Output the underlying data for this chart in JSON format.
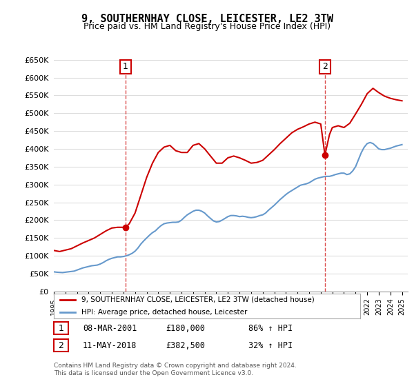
{
  "title": "9, SOUTHERNHAY CLOSE, LEICESTER, LE2 3TW",
  "subtitle": "Price paid vs. HM Land Registry's House Price Index (HPI)",
  "title_fontsize": 11,
  "subtitle_fontsize": 9,
  "ylim": [
    0,
    650000
  ],
  "yticks": [
    0,
    50000,
    100000,
    150000,
    200000,
    250000,
    300000,
    350000,
    400000,
    450000,
    500000,
    550000,
    600000,
    650000
  ],
  "xlim_start": 1995.0,
  "xlim_end": 2025.5,
  "background_color": "#ffffff",
  "grid_color": "#dddddd",
  "sale1_year": 2001.18,
  "sale1_price": 180000,
  "sale2_year": 2018.36,
  "sale2_price": 382500,
  "legend_label1": "9, SOUTHERNHAY CLOSE, LEICESTER, LE2 3TW (detached house)",
  "legend_label2": "HPI: Average price, detached house, Leicester",
  "annotation1_date": "08-MAR-2001",
  "annotation1_price": "£180,000",
  "annotation1_pct": "86% ↑ HPI",
  "annotation2_date": "11-MAY-2018",
  "annotation2_price": "£382,500",
  "annotation2_pct": "32% ↑ HPI",
  "red_line_color": "#cc0000",
  "blue_line_color": "#6699cc",
  "copyright_text": "Contains HM Land Registry data © Crown copyright and database right 2024.\nThis data is licensed under the Open Government Licence v3.0.",
  "hpi_data": {
    "years": [
      1995.0,
      1995.25,
      1995.5,
      1995.75,
      1996.0,
      1996.25,
      1996.5,
      1996.75,
      1997.0,
      1997.25,
      1997.5,
      1997.75,
      1998.0,
      1998.25,
      1998.5,
      1998.75,
      1999.0,
      1999.25,
      1999.5,
      1999.75,
      2000.0,
      2000.25,
      2000.5,
      2000.75,
      2001.0,
      2001.25,
      2001.5,
      2001.75,
      2002.0,
      2002.25,
      2002.5,
      2002.75,
      2003.0,
      2003.25,
      2003.5,
      2003.75,
      2004.0,
      2004.25,
      2004.5,
      2004.75,
      2005.0,
      2005.25,
      2005.5,
      2005.75,
      2006.0,
      2006.25,
      2006.5,
      2006.75,
      2007.0,
      2007.25,
      2007.5,
      2007.75,
      2008.0,
      2008.25,
      2008.5,
      2008.75,
      2009.0,
      2009.25,
      2009.5,
      2009.75,
      2010.0,
      2010.25,
      2010.5,
      2010.75,
      2011.0,
      2011.25,
      2011.5,
      2011.75,
      2012.0,
      2012.25,
      2012.5,
      2012.75,
      2013.0,
      2013.25,
      2013.5,
      2013.75,
      2014.0,
      2014.25,
      2014.5,
      2014.75,
      2015.0,
      2015.25,
      2015.5,
      2015.75,
      2016.0,
      2016.25,
      2016.5,
      2016.75,
      2017.0,
      2017.25,
      2017.5,
      2017.75,
      2018.0,
      2018.25,
      2018.5,
      2018.75,
      2019.0,
      2019.25,
      2019.5,
      2019.75,
      2020.0,
      2020.25,
      2020.5,
      2020.75,
      2021.0,
      2021.25,
      2021.5,
      2021.75,
      2022.0,
      2022.25,
      2022.5,
      2022.75,
      2023.0,
      2023.25,
      2023.5,
      2023.75,
      2024.0,
      2024.25,
      2024.5,
      2024.75,
      2025.0
    ],
    "values": [
      55000,
      54000,
      53500,
      53000,
      54000,
      55000,
      56000,
      57000,
      60000,
      63000,
      66000,
      68000,
      70000,
      72000,
      73000,
      74000,
      77000,
      81000,
      86000,
      90000,
      93000,
      95000,
      97000,
      97000,
      98000,
      100000,
      103000,
      107000,
      113000,
      122000,
      133000,
      142000,
      150000,
      158000,
      165000,
      170000,
      178000,
      185000,
      190000,
      192000,
      193000,
      194000,
      194000,
      195000,
      200000,
      208000,
      215000,
      220000,
      225000,
      228000,
      228000,
      225000,
      220000,
      212000,
      205000,
      198000,
      195000,
      196000,
      200000,
      205000,
      210000,
      213000,
      213000,
      212000,
      210000,
      211000,
      210000,
      208000,
      207000,
      208000,
      210000,
      213000,
      215000,
      220000,
      228000,
      235000,
      242000,
      250000,
      258000,
      265000,
      272000,
      278000,
      283000,
      288000,
      293000,
      298000,
      300000,
      302000,
      305000,
      310000,
      315000,
      318000,
      320000,
      322000,
      323000,
      323000,
      325000,
      328000,
      330000,
      332000,
      332000,
      328000,
      330000,
      338000,
      350000,
      370000,
      390000,
      405000,
      415000,
      418000,
      415000,
      408000,
      400000,
      398000,
      398000,
      400000,
      402000,
      405000,
      408000,
      410000,
      412000
    ]
  },
  "red_data": {
    "years": [
      1995.0,
      1995.5,
      1996.0,
      1996.5,
      1997.0,
      1997.5,
      1998.0,
      1998.5,
      1999.0,
      1999.5,
      2000.0,
      2000.5,
      2001.0,
      2001.18,
      2001.5,
      2002.0,
      2002.5,
      2003.0,
      2003.5,
      2004.0,
      2004.5,
      2005.0,
      2005.5,
      2006.0,
      2006.5,
      2007.0,
      2007.5,
      2008.0,
      2008.5,
      2009.0,
      2009.5,
      2010.0,
      2010.5,
      2011.0,
      2011.5,
      2012.0,
      2012.5,
      2013.0,
      2013.5,
      2014.0,
      2014.5,
      2015.0,
      2015.5,
      2016.0,
      2016.5,
      2017.0,
      2017.5,
      2018.0,
      2018.36,
      2018.75,
      2019.0,
      2019.5,
      2020.0,
      2020.5,
      2021.0,
      2021.5,
      2022.0,
      2022.5,
      2023.0,
      2023.5,
      2024.0,
      2024.5,
      2025.0
    ],
    "values": [
      115000,
      112000,
      116000,
      120000,
      128000,
      136000,
      143000,
      150000,
      160000,
      170000,
      178000,
      180000,
      180000,
      180000,
      190000,
      220000,
      270000,
      320000,
      360000,
      390000,
      405000,
      410000,
      395000,
      390000,
      390000,
      410000,
      415000,
      400000,
      380000,
      360000,
      360000,
      375000,
      380000,
      375000,
      368000,
      360000,
      362000,
      368000,
      383000,
      398000,
      415000,
      430000,
      445000,
      455000,
      462000,
      470000,
      475000,
      470000,
      382500,
      440000,
      460000,
      465000,
      460000,
      472000,
      498000,
      525000,
      555000,
      570000,
      558000,
      548000,
      542000,
      538000,
      535000
    ]
  }
}
